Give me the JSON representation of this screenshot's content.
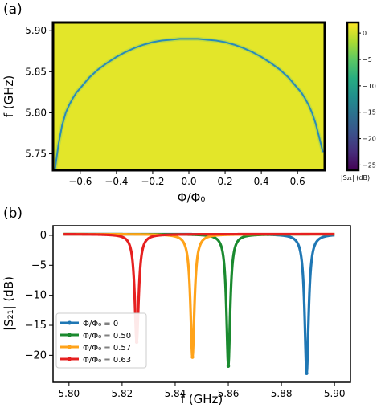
{
  "chart_data": [
    {
      "type": "heatmap",
      "panel_label": "(a)",
      "xlabel": "Φ/Φ₀",
      "ylabel": "f (GHz)",
      "xlim": [
        -0.75,
        0.75
      ],
      "ylim": [
        5.73,
        5.91
      ],
      "x_ticks": [
        -0.6,
        -0.4,
        -0.2,
        0.0,
        0.2,
        0.4,
        0.6
      ],
      "x_tick_labels": [
        "−0.6",
        "−0.4",
        "−0.2",
        "0.0",
        "0.2",
        "0.4",
        "0.6"
      ],
      "y_ticks": [
        5.75,
        5.8,
        5.85,
        5.9
      ],
      "y_tick_labels": [
        "5.75",
        "5.80",
        "5.85",
        "5.90"
      ],
      "colorbar": {
        "label": "|S₂₁| (dB)",
        "range": [
          -26,
          2
        ],
        "ticks": [
          0,
          -5,
          -10,
          -15,
          -20,
          -25
        ],
        "tick_labels": [
          "0",
          "−5",
          "−10",
          "−15",
          "−20",
          "−25"
        ],
        "colormap": "viridis"
      },
      "background_color": "#e3e629",
      "resonance_color": "#2a8ab8",
      "resonance_curve": {
        "x": [
          -0.74,
          -0.72,
          -0.7,
          -0.68,
          -0.66,
          -0.64,
          -0.62,
          -0.6,
          -0.55,
          -0.5,
          -0.45,
          -0.4,
          -0.35,
          -0.3,
          -0.25,
          -0.2,
          -0.15,
          -0.1,
          -0.05,
          0.0,
          0.05,
          0.1,
          0.15,
          0.2,
          0.25,
          0.3,
          0.35,
          0.4,
          0.45,
          0.5,
          0.55,
          0.6,
          0.62,
          0.64,
          0.66,
          0.68,
          0.7,
          0.72,
          0.74
        ],
        "f": [
          5.73,
          5.762,
          5.785,
          5.8,
          5.81,
          5.818,
          5.825,
          5.83,
          5.843,
          5.853,
          5.861,
          5.868,
          5.874,
          5.879,
          5.883,
          5.886,
          5.888,
          5.889,
          5.89,
          5.89,
          5.89,
          5.889,
          5.888,
          5.886,
          5.883,
          5.879,
          5.874,
          5.868,
          5.861,
          5.853,
          5.843,
          5.83,
          5.825,
          5.818,
          5.81,
          5.8,
          5.787,
          5.77,
          5.752
        ]
      }
    },
    {
      "type": "line",
      "panel_label": "(b)",
      "xlabel": "f (GHz)",
      "ylabel": "|S₂₁| (dB)",
      "xlim": [
        5.794,
        5.906
      ],
      "ylim": [
        -24.5,
        1.6
      ],
      "x_ticks": [
        5.8,
        5.82,
        5.84,
        5.86,
        5.88,
        5.9
      ],
      "x_tick_labels": [
        "5.80",
        "5.82",
        "5.84",
        "5.86",
        "5.88",
        "5.90"
      ],
      "y_ticks": [
        0,
        -5,
        -10,
        -15,
        -20
      ],
      "y_tick_labels": [
        "0",
        "−5",
        "−10",
        "−15",
        "−20"
      ],
      "legend_position": "lower-left",
      "x_range_measured": [
        5.798,
        5.9
      ],
      "series": [
        {
          "name": "Φ/Φ₀ = 0",
          "color": "#1f77b4",
          "f0": 5.8895,
          "depth": -23.2,
          "hwhm": 0.0009,
          "baseline": 0.2
        },
        {
          "name": "Φ/Φ₀ = 0.50",
          "color": "#1a8a2f",
          "f0": 5.86,
          "depth": -22.0,
          "hwhm": 0.00085,
          "baseline": 0.2
        },
        {
          "name": "Φ/Φ₀ = 0.57",
          "color": "#ffa31a",
          "f0": 5.8465,
          "depth": -20.5,
          "hwhm": 0.0009,
          "baseline": 0.2
        },
        {
          "name": "Φ/Φ₀ = 0.63",
          "color": "#e62020",
          "f0": 5.8255,
          "depth": -18.0,
          "hwhm": 0.0009,
          "baseline": 0.2
        }
      ]
    }
  ]
}
